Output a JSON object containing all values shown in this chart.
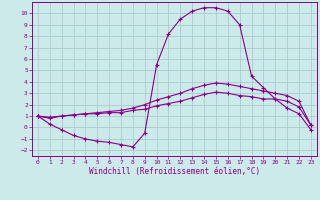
{
  "xlabel": "Windchill (Refroidissement éolien,°C)",
  "bg_color": "#cceaea",
  "grid_color": "#aacccc",
  "line_color": "#880088",
  "xlim": [
    -0.5,
    23.5
  ],
  "ylim": [
    -2.5,
    11.0
  ],
  "xticks": [
    0,
    1,
    2,
    3,
    4,
    5,
    6,
    7,
    8,
    9,
    10,
    11,
    12,
    13,
    14,
    15,
    16,
    17,
    18,
    19,
    20,
    21,
    22,
    23
  ],
  "yticks": [
    -2,
    -1,
    0,
    1,
    2,
    3,
    4,
    5,
    6,
    7,
    8,
    9,
    10
  ],
  "line1_x": [
    0,
    1,
    2,
    3,
    4,
    5,
    6,
    7,
    8,
    9,
    10,
    11,
    12,
    13,
    14,
    15,
    16,
    17,
    18,
    19,
    20,
    21,
    22,
    23
  ],
  "line1_y": [
    1.0,
    0.8,
    1.0,
    1.1,
    1.2,
    1.2,
    1.3,
    1.3,
    1.5,
    1.6,
    1.9,
    2.1,
    2.3,
    2.6,
    2.9,
    3.1,
    3.0,
    2.8,
    2.7,
    2.5,
    2.5,
    2.3,
    1.8,
    0.2
  ],
  "line2_x": [
    0,
    1,
    2,
    3,
    4,
    5,
    6,
    7,
    8,
    9,
    10,
    11,
    12,
    13,
    14,
    15,
    16,
    17,
    18,
    19,
    20,
    21,
    22,
    23
  ],
  "line2_y": [
    1.0,
    0.9,
    1.0,
    1.1,
    1.2,
    1.3,
    1.4,
    1.5,
    1.7,
    2.0,
    2.4,
    2.7,
    3.0,
    3.4,
    3.7,
    3.9,
    3.8,
    3.6,
    3.4,
    3.2,
    3.0,
    2.8,
    2.3,
    0.2
  ],
  "line3_x": [
    0,
    1,
    2,
    3,
    4,
    5,
    6,
    7,
    8,
    9,
    10,
    11,
    12,
    13,
    14,
    15,
    16,
    17,
    18,
    19,
    20,
    21,
    22,
    23
  ],
  "line3_y": [
    1.0,
    0.3,
    -0.2,
    -0.7,
    -1.0,
    -1.2,
    -1.3,
    -1.5,
    -1.7,
    -0.5,
    5.5,
    8.2,
    9.5,
    10.2,
    10.5,
    10.5,
    10.2,
    9.0,
    4.5,
    3.5,
    2.5,
    1.7,
    1.2,
    -0.2
  ]
}
